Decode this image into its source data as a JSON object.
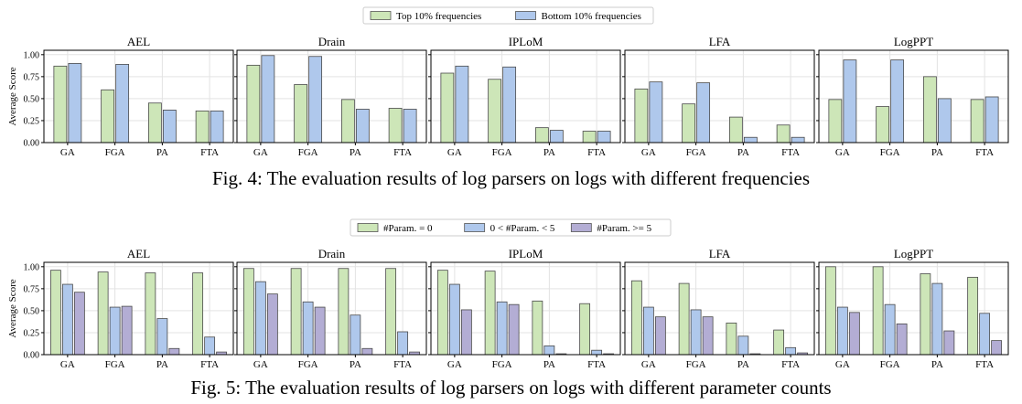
{
  "figures": [
    {
      "caption": "Fig. 4: The evaluation results of log parsers on logs with different frequencies",
      "legend_position": "top-center"
    },
    {
      "caption": "Fig. 5: The evaluation results of log parsers on logs with different parameter counts",
      "legend_position": "top-center"
    }
  ],
  "chart_data": [
    {
      "type": "bar",
      "ylabel": "Average Score",
      "ylim": [
        0,
        1.05
      ],
      "yticks": [
        "0.00",
        "0.25",
        "0.50",
        "0.75",
        "1.00"
      ],
      "grid": true,
      "categories": [
        "GA",
        "FGA",
        "PA",
        "FTA"
      ],
      "colors": [
        "#cde6b8",
        "#afc8ec"
      ],
      "legend": [
        "Top 10% frequencies",
        "Bottom 10% frequencies"
      ],
      "panels": [
        {
          "title": "AEL",
          "series": [
            [
              0.87,
              0.6,
              0.45,
              0.36
            ],
            [
              0.9,
              0.89,
              0.37,
              0.36
            ]
          ]
        },
        {
          "title": "Drain",
          "series": [
            [
              0.88,
              0.66,
              0.49,
              0.39
            ],
            [
              0.99,
              0.98,
              0.38,
              0.38
            ]
          ]
        },
        {
          "title": "IPLoM",
          "series": [
            [
              0.79,
              0.72,
              0.17,
              0.13
            ],
            [
              0.87,
              0.86,
              0.14,
              0.13
            ]
          ]
        },
        {
          "title": "LFA",
          "series": [
            [
              0.61,
              0.44,
              0.29,
              0.2
            ],
            [
              0.69,
              0.68,
              0.06,
              0.06
            ]
          ]
        },
        {
          "title": "LogPPT",
          "series": [
            [
              0.49,
              0.41,
              0.75,
              0.49
            ],
            [
              0.94,
              0.94,
              0.5,
              0.52
            ]
          ]
        }
      ]
    },
    {
      "type": "bar",
      "ylabel": "Average Score",
      "ylim": [
        0,
        1.05
      ],
      "yticks": [
        "0.00",
        "0.25",
        "0.50",
        "0.75",
        "1.00"
      ],
      "grid": true,
      "categories": [
        "GA",
        "FGA",
        "PA",
        "FTA"
      ],
      "colors": [
        "#cde6b8",
        "#afc8ec",
        "#b3add4"
      ],
      "legend": [
        "#Param. = 0",
        "0 < #Param. < 5",
        "#Param. >= 5"
      ],
      "panels": [
        {
          "title": "AEL",
          "series": [
            [
              0.96,
              0.94,
              0.93,
              0.93
            ],
            [
              0.8,
              0.54,
              0.41,
              0.2
            ],
            [
              0.71,
              0.55,
              0.07,
              0.03
            ]
          ]
        },
        {
          "title": "Drain",
          "series": [
            [
              0.98,
              0.98,
              0.98,
              0.98
            ],
            [
              0.83,
              0.6,
              0.45,
              0.26
            ],
            [
              0.69,
              0.54,
              0.07,
              0.03
            ]
          ]
        },
        {
          "title": "IPLoM",
          "series": [
            [
              0.96,
              0.95,
              0.61,
              0.58
            ],
            [
              0.8,
              0.6,
              0.1,
              0.05
            ],
            [
              0.51,
              0.57,
              0.01,
              0.01
            ]
          ]
        },
        {
          "title": "LFA",
          "series": [
            [
              0.84,
              0.81,
              0.36,
              0.28
            ],
            [
              0.54,
              0.51,
              0.21,
              0.08
            ],
            [
              0.43,
              0.43,
              0.01,
              0.02
            ]
          ]
        },
        {
          "title": "LogPPT",
          "series": [
            [
              1.0,
              1.0,
              0.92,
              0.88
            ],
            [
              0.54,
              0.57,
              0.81,
              0.47
            ],
            [
              0.48,
              0.35,
              0.27,
              0.16
            ]
          ]
        }
      ]
    }
  ]
}
